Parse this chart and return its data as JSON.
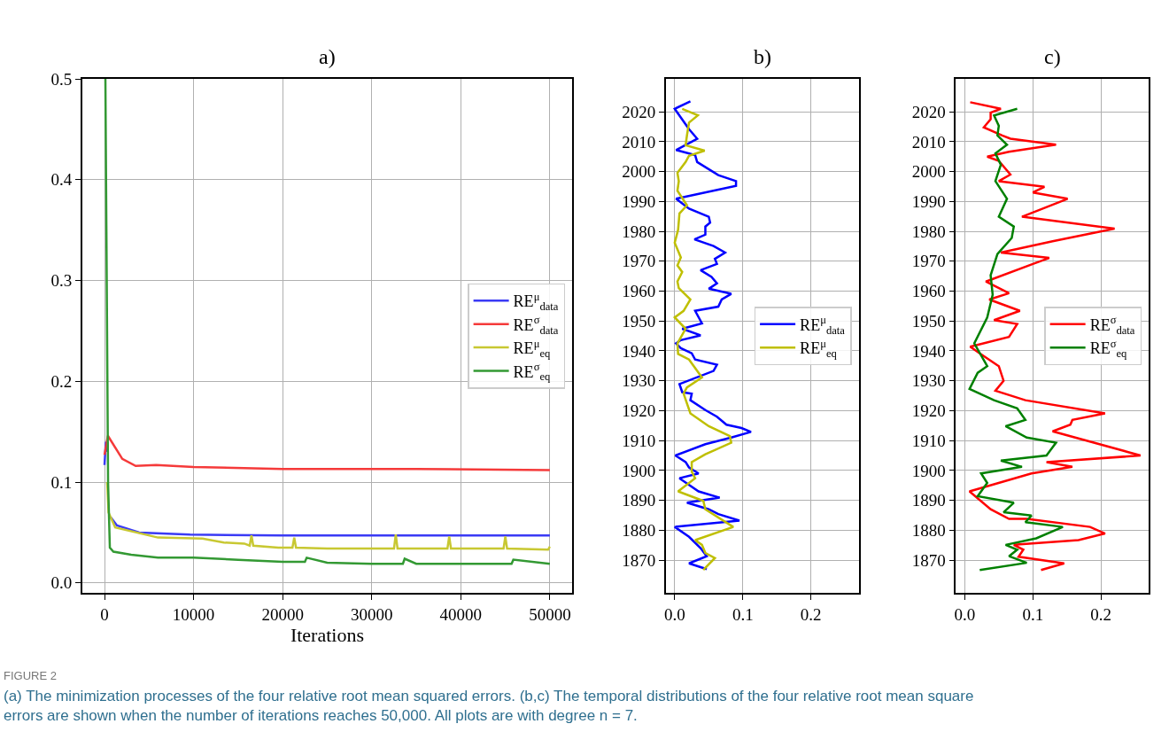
{
  "chart_data": [
    {
      "type": "line",
      "title": "a)",
      "xlabel": "Iterations",
      "xlim": [
        -2500,
        52500
      ],
      "ylim": [
        -0.01,
        0.5
      ],
      "xticks": [
        0,
        10000,
        20000,
        30000,
        40000,
        50000
      ],
      "yticks": [
        {
          "value": 0,
          "label": "0.0"
        },
        {
          "value": 0.1,
          "label": "0.1"
        },
        {
          "value": 0.2,
          "label": "0.2"
        },
        {
          "value": 0.3,
          "label": "0.3"
        },
        {
          "value": 0.4,
          "label": "0.4"
        },
        {
          "value": 0.5,
          "label": "0.5"
        }
      ],
      "grid": true,
      "legend": "right",
      "series": [
        {
          "name": "RE$^{μ}$$_{data}$",
          "color": "#3a3af5",
          "x": [
            0,
            150,
            250,
            400,
            700,
            1400,
            3900,
            9600,
            20000,
            30000,
            40000,
            50000
          ],
          "values": [
            0.117,
            0.14,
            0.13,
            null,
            0.065,
            0.057,
            0.05,
            0.048,
            0.047,
            0.047,
            0.047,
            0.047
          ]
        },
        {
          "name": "RE$^{σ}$$_{data}$",
          "color": "#f53a3a",
          "x": [
            0,
            380,
            2000,
            3500,
            5800,
            10000,
            20000,
            35000,
            50000
          ],
          "values": [
            0.127,
            0.146,
            0.123,
            0.116,
            0.117,
            0.115,
            0.113,
            0.113,
            0.112
          ]
        },
        {
          "name": "RE$^{μ}$$_{eq}$",
          "color": "#c8c832",
          "x": [
            300,
            450,
            1200,
            6000,
            11000,
            13400,
            15700,
            16300,
            16500,
            16700,
            19500,
            21100,
            21300,
            21500,
            25000,
            32500,
            32700,
            32900,
            38500,
            38700,
            38900,
            44800,
            45000,
            45200,
            49800,
            50000
          ],
          "values": [
            0.1,
            0.07,
            0.055,
            0.045,
            0.044,
            0.04,
            0.039,
            0.037,
            0.047,
            0.037,
            0.035,
            0.035,
            0.045,
            0.035,
            0.034,
            0.034,
            0.048,
            0.034,
            0.034,
            0.046,
            0.034,
            0.034,
            0.046,
            0.034,
            0.033,
            0.036
          ]
        },
        {
          "name": "RE$^{σ}$$_{eq}$",
          "color": "#339933",
          "x": [
            100,
            400,
            600,
            1000,
            3000,
            6000,
            10000,
            15000,
            20000,
            22500,
            22700,
            25000,
            30000,
            33500,
            33700,
            35000,
            40000,
            45700,
            45900,
            50000
          ],
          "values": [
            0.5,
            0.1,
            0.035,
            0.031,
            0.028,
            0.025,
            0.025,
            0.023,
            0.021,
            0.021,
            0.025,
            0.02,
            0.019,
            0.019,
            0.024,
            0.019,
            0.019,
            0.019,
            0.023,
            0.019
          ]
        }
      ],
      "annotations": [
        "FIGURE 2",
        "(a) The minimization processes of the four relative root mean squared errors. (b,c) The temporal distributions of the four relative root mean square errors are shown when the number of iterations reaches 50,000. All plots are with degree n = 7."
      ]
    },
    {
      "type": "line",
      "title": "b)",
      "orientation": "horizontal",
      "xlim": [
        -0.013,
        0.27
      ],
      "ylim": [
        1859,
        2031
      ],
      "xticks": [
        {
          "value": 0,
          "label": "0.0"
        },
        0.1,
        0.2
      ],
      "yticks": [
        1870,
        1880,
        1890,
        1900,
        1910,
        1920,
        1930,
        1940,
        1950,
        1960,
        1970,
        1980,
        1990,
        2000,
        2010,
        2020
      ],
      "grid": true,
      "legend": "right",
      "series": [
        {
          "name": "RE$^{μ}$$_{data}$",
          "color": "#0000ff",
          "x": [
            2023.5,
            2021,
            2014.2,
            2011,
            2007.2,
            2005.5,
            2003.2,
            1998.8,
            1996.8,
            1995.2,
            1990.9,
            1987.6,
            1984.9,
            1982.9,
            1981.6,
            1978.9,
            1977.3,
            1975.1,
            1972.9,
            1970.8,
            1969.1,
            1967,
            1964.8,
            1962.6,
            1960.8,
            1959.1,
            1957.2,
            1954.8,
            1953.4,
            1949.2,
            1947.4,
            1945.2,
            1943.6,
            1942.5,
            1940.9,
            1939.2,
            1937.1,
            1935.4,
            1933.3,
            1928.9,
            1926.2,
            1925.7,
            1923.5,
            1920.2,
            1918,
            1915.3,
            1914.2,
            1912.9,
            1911,
            1908.8,
            1905,
            1902.8,
            1901,
            1899,
            1897.4,
            1893,
            1890.9,
            1889.2,
            1887,
            1885.4,
            1883.2,
            1881.1,
            1877.8,
            1874,
            1871.3,
            1868.9,
            1867
          ],
          "values": [
            0.023,
            0.0,
            0.021,
            0.033,
            0.002,
            0.03,
            0.033,
            0.064,
            0.09,
            0.09,
            0.002,
            0.021,
            0.05,
            0.052,
            0.045,
            0.045,
            0.029,
            0.057,
            0.074,
            0.059,
            0.062,
            0.038,
            0.054,
            0.062,
            0.05,
            0.083,
            0.069,
            0.064,
            0.03,
            0.04,
            0.011,
            0.038,
            0.009,
            0.002,
            0.009,
            0.025,
            0.03,
            0.062,
            0.057,
            0.007,
            0.011,
            0.025,
            0.023,
            0.045,
            0.062,
            0.076,
            0.098,
            0.112,
            0.083,
            0.045,
            0.001,
            0.016,
            0.021,
            0.035,
            0.007,
            0.035,
            0.066,
            0.018,
            0.05,
            0.064,
            0.095,
            0.0,
            0.021,
            0.038,
            0.047,
            0.021,
            0.047
          ]
        },
        {
          "name": "RE$^{μ}$$_{eq}$",
          "color": "#bfbf00",
          "x": [
            2021,
            2018.8,
            2016.4,
            2012.1,
            2008.8,
            2007,
            2005.3,
            2003.2,
            1999.6,
            1996.8,
            1993.6,
            1988.7,
            1986,
            1980.5,
            1976.2,
            1971.3,
            1968.6,
            1966.4,
            1963.2,
            1961,
            1957.2,
            1953.4,
            1951.2,
            1947.4,
            1942.5,
            1939,
            1937.1,
            1931.1,
            1927.8,
            1925.7,
            1919.1,
            1914.8,
            1911.5,
            1909.3,
            1905.4,
            1902.8,
            1899.6,
            1897.4,
            1893,
            1889.8,
            1887,
            1881.1,
            1876.7,
            1875.1,
            1872.4,
            1870.7,
            1866.7
          ],
          "values": [
            0.011,
            0.034,
            0.021,
            0.018,
            0.016,
            0.044,
            0.021,
            0.016,
            0.004,
            0.006,
            0.004,
            0.018,
            0.007,
            0.005,
            0.0,
            0.009,
            0.004,
            0.011,
            0.004,
            0.006,
            0.023,
            0.013,
            0.0,
            0.016,
            0.004,
            0.005,
            0.021,
            0.04,
            0.018,
            0.013,
            0.023,
            0.05,
            0.081,
            0.083,
            0.045,
            0.025,
            0.025,
            0.03,
            0.005,
            0.042,
            0.045,
            0.086,
            0.03,
            0.04,
            0.045,
            0.059,
            0.042
          ]
        }
      ]
    },
    {
      "type": "line",
      "title": "c)",
      "orientation": "horizontal",
      "xlim": [
        -0.013,
        0.27
      ],
      "ylim": [
        1859,
        2031
      ],
      "xticks": [
        {
          "value": 0,
          "label": "0.0"
        },
        0.1,
        0.2
      ],
      "yticks": [
        1870,
        1880,
        1890,
        1900,
        1910,
        1920,
        1930,
        1940,
        1950,
        1960,
        1970,
        1980,
        1990,
        2000,
        2010,
        2020
      ],
      "grid": true,
      "legend": "right",
      "series": [
        {
          "name": "RE$^{σ}$$_{data}$",
          "color": "#ff0000",
          "x": [
            2023.2,
            2021,
            2019.7,
            2017.5,
            2014.8,
            2012.1,
            2011,
            2009,
            2006.6,
            2005,
            2003.6,
            1999,
            1996.8,
            1994.9,
            1993,
            1990.9,
            1984.9,
            1980.9,
            1976.7,
            1972.9,
            1971.1,
            1969.1,
            1963.2,
            1959.3,
            1957.2,
            1953.4,
            1950.3,
            1949,
            1944.7,
            1941.4,
            1939.2,
            1934.9,
            1930,
            1926.7,
            1923.5,
            1919.1,
            1916.9,
            1915.3,
            1913.1,
            1905,
            1902.8,
            1901.2,
            1899,
            1893,
            1887,
            1883.8,
            1883.8,
            1881.1,
            1878.9,
            1876.7,
            1875.1,
            1873.5,
            1871.1,
            1868.9,
            1866.7
          ],
          "values": [
            0.008,
            0.053,
            0.038,
            0.038,
            0.028,
            0.055,
            0.067,
            0.134,
            0.065,
            0.033,
            0.05,
            0.067,
            0.05,
            0.117,
            0.1,
            0.151,
            0.084,
            0.22,
            0.129,
            0.053,
            0.124,
            0.1,
            0.031,
            0.065,
            0.036,
            0.081,
            0.043,
            0.077,
            0.065,
            0.008,
            0.022,
            0.05,
            0.057,
            0.045,
            0.089,
            0.206,
            0.158,
            0.155,
            0.129,
            0.258,
            0.12,
            0.158,
            0.098,
            0.007,
            0.038,
            0.065,
            0.091,
            0.184,
            0.206,
            0.167,
            0.072,
            0.086,
            0.079,
            0.146,
            0.112
          ]
        },
        {
          "name": "RE$^{σ}$$_{eq}$",
          "color": "#008000",
          "x": [
            2021,
            2018.8,
            2015.3,
            2012.1,
            2009,
            2006.1,
            2002.3,
            1996.8,
            1990.9,
            1984.9,
            1981.6,
            1977.8,
            1972.4,
            1965.3,
            1958.8,
            1951.2,
            1942.5,
            1934.9,
            1932.7,
            1927.3,
            1923.5,
            1920.8,
            1916.9,
            1914.8,
            1911,
            1909.3,
            1905,
            1903.3,
            1901.2,
            1899,
            1895.8,
            1891.4,
            1889.2,
            1886,
            1884.9,
            1882.7,
            1881.1,
            1877.3,
            1875.1,
            1873.5,
            1871.3,
            1869.1,
            1866.7
          ],
          "values": [
            0.077,
            0.043,
            0.05,
            0.048,
            0.062,
            0.045,
            0.053,
            0.045,
            0.062,
            0.05,
            0.072,
            0.069,
            0.048,
            0.038,
            0.041,
            0.033,
            0.014,
            0.033,
            0.019,
            0.007,
            0.043,
            0.077,
            0.089,
            0.06,
            0.091,
            0.134,
            0.12,
            0.053,
            0.084,
            0.024,
            0.033,
            0.019,
            0.072,
            0.057,
            0.098,
            0.089,
            0.144,
            0.105,
            0.06,
            0.077,
            0.065,
            0.091,
            0.022
          ]
        }
      ]
    }
  ]
}
